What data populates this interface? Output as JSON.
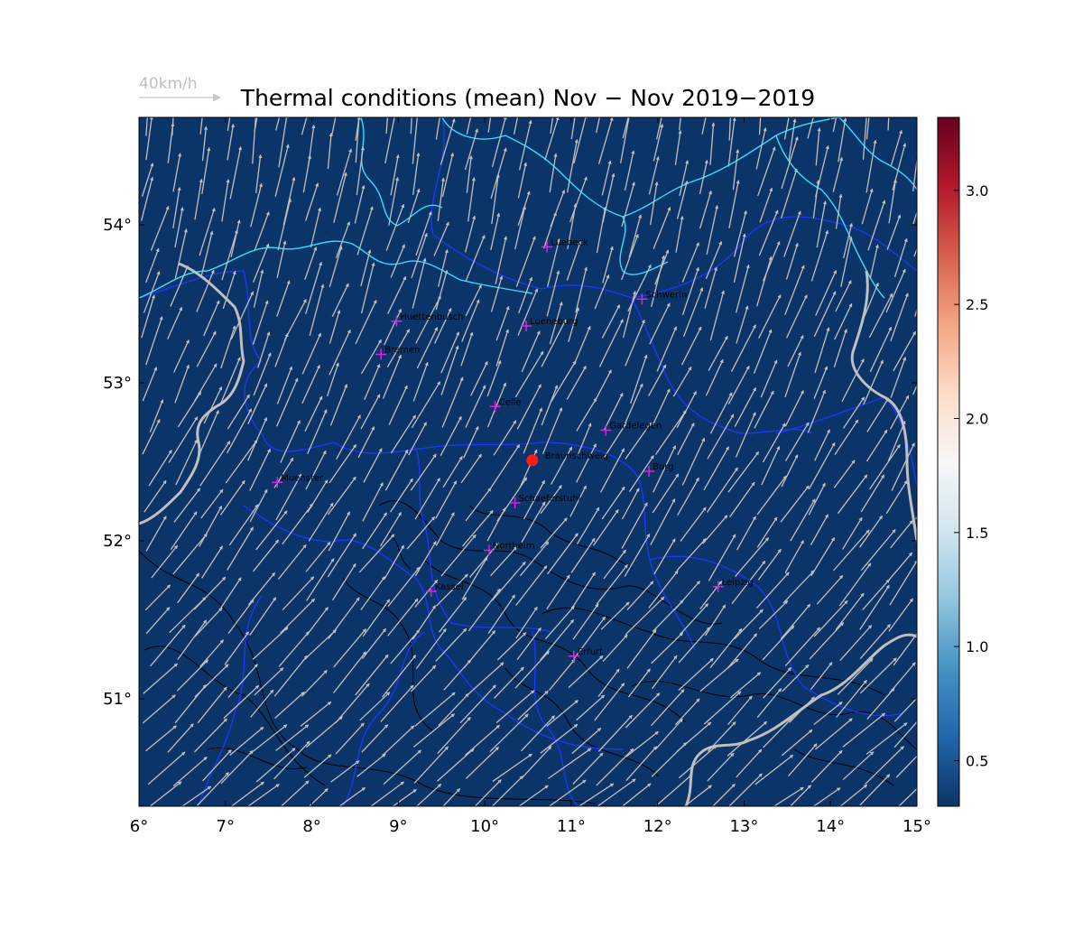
{
  "title": "Thermal conditions (mean) Nov − Nov  2019−2019",
  "wind_legend": {
    "label": "40km/h"
  },
  "map": {
    "lon_range": [
      6,
      15
    ],
    "lat_range": [
      50.32,
      54.68
    ],
    "background_color": "#0b3468",
    "lon_ticks": [
      "6°",
      "7°",
      "8°",
      "9°",
      "10°",
      "11°",
      "12°",
      "13°",
      "14°",
      "15°"
    ],
    "lat_ticks": [
      "51°",
      "52°",
      "53°",
      "54°"
    ],
    "lat_tick_values": [
      51,
      52,
      53,
      54
    ],
    "lon_tick_values": [
      6,
      7,
      8,
      9,
      10,
      11,
      12,
      13,
      14,
      15
    ],
    "reference_point": {
      "name": "Braunschweig",
      "lon": 10.55,
      "lat": 52.51,
      "color": "#ff1a1a"
    },
    "cities": [
      {
        "name": "Luebeck",
        "lon": 10.72,
        "lat": 53.86
      },
      {
        "name": "Schwerin",
        "lon": 11.82,
        "lat": 53.53
      },
      {
        "name": "Huettenbusch",
        "lon": 8.98,
        "lat": 53.39
      },
      {
        "name": "Lueneburg",
        "lon": 10.48,
        "lat": 53.36
      },
      {
        "name": "Bremen",
        "lon": 8.8,
        "lat": 53.18
      },
      {
        "name": "Celle",
        "lon": 10.12,
        "lat": 52.85
      },
      {
        "name": "Gardelegen",
        "lon": 11.4,
        "lat": 52.7
      },
      {
        "name": "Burg",
        "lon": 11.9,
        "lat": 52.44
      },
      {
        "name": "Muenster",
        "lon": 7.6,
        "lat": 52.37
      },
      {
        "name": "Schaeferstuhl",
        "lon": 10.35,
        "lat": 52.24
      },
      {
        "name": "Northeim",
        "lon": 10.05,
        "lat": 51.94
      },
      {
        "name": "Kassel",
        "lon": 9.38,
        "lat": 51.68
      },
      {
        "name": "Leipzig",
        "lon": 12.7,
        "lat": 51.71
      },
      {
        "name": "Erfurt",
        "lon": 11.03,
        "lat": 51.27
      }
    ],
    "city_marker_color": "#e020e0",
    "wind_arrow_color": "#c0c0c0",
    "coastline_color": "#30e0ff",
    "state_border_color": "#1e38ff",
    "country_border_color": "#c0c0c0",
    "contour_color": "#000000"
  },
  "colorbar": {
    "ticks": [
      "0.5",
      "1.0",
      "1.5",
      "2.0",
      "2.5",
      "3.0"
    ],
    "tick_values": [
      0.5,
      1.0,
      1.5,
      2.0,
      2.5,
      3.0
    ],
    "range": [
      0.3,
      3.32
    ],
    "colormap": "RdBu_r",
    "stops": [
      "#0b3468",
      "#2166ac",
      "#4393c3",
      "#92c5de",
      "#d1e5f0",
      "#f7f7f7",
      "#fddbc7",
      "#f4a582",
      "#d6604d",
      "#b2182b",
      "#67001f"
    ]
  }
}
